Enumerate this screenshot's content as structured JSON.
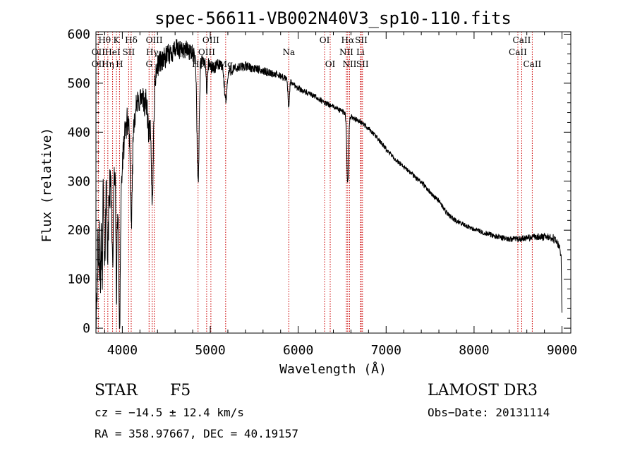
{
  "chart_data": {
    "type": "line",
    "title": "spec-56611-VB002N40V3_sp10-110.fits",
    "xlabel": "Wavelength (Å)",
    "ylabel": "Flux (relative)",
    "xlim": [
      3700,
      9100
    ],
    "ylim": [
      -10,
      605
    ],
    "xticks": [
      4000,
      5000,
      6000,
      7000,
      8000,
      9000
    ],
    "yticks": [
      0,
      100,
      200,
      300,
      400,
      500,
      600
    ],
    "series": [
      {
        "name": "spectrum",
        "anchors": [
          [
            3700,
            20
          ],
          [
            3720,
            150
          ],
          [
            3740,
            250
          ],
          [
            3760,
            200
          ],
          [
            3780,
            290
          ],
          [
            3800,
            250
          ],
          [
            3830,
            310
          ],
          [
            3860,
            280
          ],
          [
            3880,
            330
          ],
          [
            3900,
            300
          ],
          [
            3920,
            340
          ],
          [
            3950,
            270
          ],
          [
            3970,
            200
          ],
          [
            3990,
            300
          ],
          [
            4020,
            380
          ],
          [
            4050,
            420
          ],
          [
            4080,
            430
          ],
          [
            4100,
            360
          ],
          [
            4130,
            430
          ],
          [
            4170,
            455
          ],
          [
            4200,
            470
          ],
          [
            4250,
            460
          ],
          [
            4300,
            470
          ],
          [
            4340,
            440
          ],
          [
            4380,
            520
          ],
          [
            4420,
            545
          ],
          [
            4480,
            550
          ],
          [
            4540,
            560
          ],
          [
            4600,
            570
          ],
          [
            4650,
            565
          ],
          [
            4700,
            570
          ],
          [
            4760,
            565
          ],
          [
            4800,
            560
          ],
          [
            4850,
            555
          ],
          [
            4900,
            545
          ],
          [
            4950,
            540
          ],
          [
            5000,
            535
          ],
          [
            5050,
            530
          ],
          [
            5100,
            540
          ],
          [
            5150,
            530
          ],
          [
            5200,
            525
          ],
          [
            5300,
            530
          ],
          [
            5400,
            535
          ],
          [
            5500,
            530
          ],
          [
            5600,
            525
          ],
          [
            5700,
            520
          ],
          [
            5800,
            515
          ],
          [
            5900,
            505
          ],
          [
            6000,
            490
          ],
          [
            6100,
            480
          ],
          [
            6200,
            472
          ],
          [
            6300,
            460
          ],
          [
            6400,
            452
          ],
          [
            6500,
            442
          ],
          [
            6600,
            432
          ],
          [
            6700,
            422
          ],
          [
            6800,
            408
          ],
          [
            6900,
            388
          ],
          [
            7000,
            365
          ],
          [
            7100,
            345
          ],
          [
            7200,
            330
          ],
          [
            7300,
            313
          ],
          [
            7400,
            298
          ],
          [
            7500,
            278
          ],
          [
            7600,
            260
          ],
          [
            7700,
            232
          ],
          [
            7800,
            218
          ],
          [
            7900,
            210
          ],
          [
            8000,
            202
          ],
          [
            8100,
            196
          ],
          [
            8200,
            190
          ],
          [
            8300,
            185
          ],
          [
            8400,
            182
          ],
          [
            8500,
            182
          ],
          [
            8600,
            184
          ],
          [
            8700,
            186
          ],
          [
            8800,
            186
          ],
          [
            8900,
            184
          ],
          [
            8960,
            170
          ],
          [
            8990,
            150
          ],
          [
            9000,
            30
          ]
        ],
        "absorption": [
          {
            "center": 3734,
            "width": 5,
            "depth": 120
          },
          {
            "center": 3750,
            "width": 5,
            "depth": 130
          },
          {
            "center": 3771,
            "width": 5,
            "depth": 140
          },
          {
            "center": 3798,
            "width": 6,
            "depth": 150
          },
          {
            "center": 3835,
            "width": 7,
            "depth": 160
          },
          {
            "center": 3889,
            "width": 8,
            "depth": 180
          },
          {
            "center": 3933,
            "width": 7,
            "depth": 230
          },
          {
            "center": 3968,
            "width": 8,
            "depth": 200
          },
          {
            "center": 4101,
            "width": 12,
            "depth": 150
          },
          {
            "center": 4300,
            "width": 12,
            "depth": 70
          },
          {
            "center": 4340,
            "width": 12,
            "depth": 180
          },
          {
            "center": 4861,
            "width": 12,
            "depth": 260
          },
          {
            "center": 4960,
            "width": 6,
            "depth": 60
          },
          {
            "center": 5175,
            "width": 15,
            "depth": 60
          },
          {
            "center": 5892,
            "width": 8,
            "depth": 55
          },
          {
            "center": 6563,
            "width": 10,
            "depth": 140
          }
        ],
        "noise": [
          [
            3700,
            50
          ],
          [
            3800,
            50
          ],
          [
            4000,
            30
          ],
          [
            4200,
            30
          ],
          [
            4400,
            25
          ],
          [
            4600,
            22
          ],
          [
            5000,
            14
          ],
          [
            5500,
            9
          ],
          [
            6000,
            6
          ],
          [
            7000,
            5
          ],
          [
            8000,
            5
          ],
          [
            8500,
            6
          ],
          [
            9000,
            9
          ]
        ]
      }
    ],
    "spectral_lines": [
      {
        "label": "Hθ",
        "wavelength": 3798,
        "row": 1
      },
      {
        "label": "OII",
        "wavelength": 3727,
        "row": 2
      },
      {
        "label": "OII",
        "wavelength": 3727,
        "row": 3
      },
      {
        "label": "Hη",
        "wavelength": 3835,
        "row": 3
      },
      {
        "label": "HeI",
        "wavelength": 3889,
        "row": 2
      },
      {
        "label": "K",
        "wavelength": 3933,
        "row": 1
      },
      {
        "label": "H",
        "wavelength": 3968,
        "row": 3
      },
      {
        "label": "SII",
        "wavelength": 4072,
        "row": 2
      },
      {
        "label": "Hδ",
        "wavelength": 4101,
        "row": 1
      },
      {
        "label": "G",
        "wavelength": 4304,
        "row": 3
      },
      {
        "label": "OIII",
        "wavelength": 4363,
        "row": 1
      },
      {
        "label": "Hγ",
        "wavelength": 4340,
        "row": 2
      },
      {
        "label": "Hβ",
        "wavelength": 4861,
        "row": 3
      },
      {
        "label": "OIII",
        "wavelength": 5007,
        "row": 1
      },
      {
        "label": "OIII",
        "wavelength": 4959,
        "row": 2
      },
      {
        "label": "Mg",
        "wavelength": 5175,
        "row": 3
      },
      {
        "label": "Na",
        "wavelength": 5893,
        "row": 2
      },
      {
        "label": "OI",
        "wavelength": 6300,
        "row": 1
      },
      {
        "label": "OI",
        "wavelength": 6364,
        "row": 3
      },
      {
        "label": "Hα",
        "wavelength": 6563,
        "row": 1
      },
      {
        "label": "NII",
        "wavelength": 6548,
        "row": 2
      },
      {
        "label": "NII",
        "wavelength": 6584,
        "row": 3
      },
      {
        "label": "SII",
        "wavelength": 6717,
        "row": 1
      },
      {
        "label": "Li",
        "wavelength": 6708,
        "row": 2
      },
      {
        "label": "SII",
        "wavelength": 6731,
        "row": 3
      },
      {
        "label": "CaII",
        "wavelength": 8542,
        "row": 1
      },
      {
        "label": "CaII",
        "wavelength": 8498,
        "row": 2
      },
      {
        "label": "CaII",
        "wavelength": 8662,
        "row": 3
      }
    ]
  },
  "info": {
    "object_class": "STAR",
    "subclass": "F5",
    "survey": "LAMOST DR3",
    "redshift_line": "cz = −14.5 ± 12.4 km/s",
    "obs_date": "Obs−Date: 20131114",
    "coords": "RA = 358.97667, DEC =  40.19157"
  },
  "colors": {
    "spectrum": "#000000",
    "line_marker": "#cc0000",
    "axes": "#000000",
    "background": "#ffffff"
  }
}
